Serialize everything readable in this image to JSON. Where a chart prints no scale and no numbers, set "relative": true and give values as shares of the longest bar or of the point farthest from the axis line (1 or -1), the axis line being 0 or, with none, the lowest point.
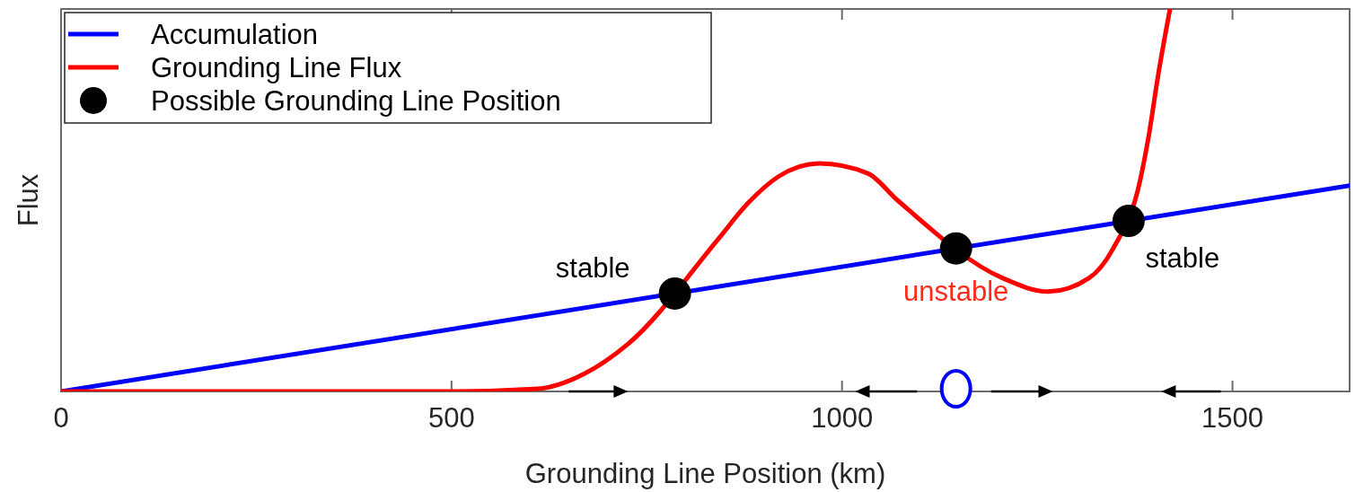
{
  "chart_data": {
    "type": "line",
    "xlabel": "Grounding Line Position (km)",
    "ylabel": "Flux",
    "relative": true,
    "xlim": [
      0,
      1650
    ],
    "xticks": [
      0,
      500,
      1000,
      1500
    ],
    "grid": false,
    "legend": "top left",
    "series": [
      {
        "name": "Accumulation",
        "color": "#0000ff",
        "marker": "none",
        "x": [
          0,
          1650
        ],
        "values": [
          0,
          0.538
        ]
      },
      {
        "name": "Grounding Line Flux",
        "color": "#ff0000",
        "marker": "none",
        "x": [
          0,
          497,
          611,
          669,
          726,
          841,
          879,
          918,
          971,
          1033,
          1071,
          1206,
          1264,
          1316,
          1347,
          1382,
          1393,
          1405,
          1420
        ],
        "values": [
          0,
          0,
          0.007,
          0.045,
          0.124,
          0.397,
          0.491,
          0.561,
          0.596,
          0.57,
          0.5,
          0.296,
          0.261,
          0.296,
          0.373,
          0.554,
          0.671,
          0.829,
          1
        ]
      },
      {
        "name": "Possible Grounding Line Position",
        "color": "#000000",
        "type": "scatter",
        "marker": "circle",
        "x": [
          786,
          1146,
          1367
        ],
        "values": [
          0.256,
          0.374,
          0.446
        ]
      }
    ],
    "annotations": [
      {
        "text": "stable",
        "x": 786,
        "y": 0.256
      },
      {
        "text": "unstable",
        "x": 1146,
        "y": 0.374
      },
      {
        "text": "stable",
        "x": 1367,
        "y": 0.446
      }
    ]
  }
}
